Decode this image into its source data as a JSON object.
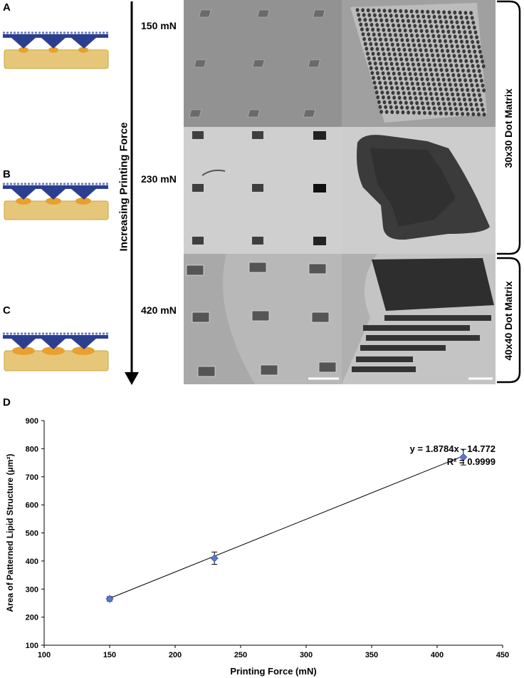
{
  "figure": {
    "panel_labels": [
      "A",
      "B",
      "C",
      "D"
    ],
    "arrow_label": "Increasing Printing Force",
    "force_labels": [
      "150 mN",
      "230 mN",
      "420 mN"
    ],
    "bracket_labels": [
      "30x30 Dot Matrix",
      "40x40 Dot Matrix"
    ],
    "colors": {
      "substrate": "#e6c77a",
      "substrate_border": "#c9a43a",
      "stamp": "#2c3f8f",
      "stamp_light": "#6b7fc2",
      "lipid": "#e8a030",
      "micro_gray_top": "#9a9a9a",
      "micro_gray_mid": "#c8c8c8",
      "micro_gray_bottom": "#b4b4b4",
      "dark_pattern": "#2a2a2a"
    }
  },
  "chart_data": {
    "type": "scatter",
    "x": [
      150,
      230,
      420
    ],
    "y": [
      265,
      410,
      770
    ],
    "error": [
      8,
      22,
      28
    ],
    "xlabel": "Printing Force (mN)",
    "ylabel": "Area of Patterned Lipid Structure (μm²)",
    "xlim": [
      100,
      450
    ],
    "ylim": [
      100,
      900
    ],
    "xticks": [
      100,
      150,
      200,
      250,
      300,
      350,
      400,
      450
    ],
    "yticks": [
      100,
      200,
      300,
      400,
      500,
      600,
      700,
      800,
      900
    ],
    "trendline": {
      "slope": 1.8784,
      "intercept": -14.772
    },
    "annotation": {
      "equation": "y = 1.8784x - 14.772",
      "r2": "R² = 0.9999"
    },
    "marker_color": "#5b77c9",
    "grid": false
  }
}
